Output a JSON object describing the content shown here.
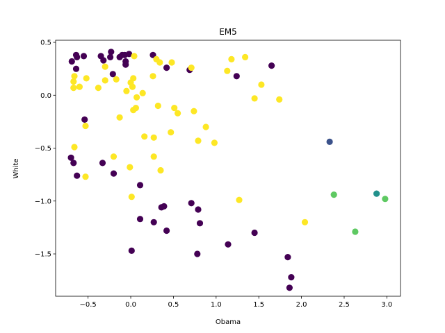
{
  "chart_data": {
    "type": "scatter",
    "title": "EM5",
    "xlabel": "Obama",
    "ylabel": "White",
    "xlim": [
      -0.88,
      3.16
    ],
    "ylim": [
      -1.9,
      0.52
    ],
    "xticks": [
      -0.5,
      0.0,
      0.5,
      1.0,
      1.5,
      2.0,
      2.5,
      3.0
    ],
    "xtick_labels": [
      "−0.5",
      "0.0",
      "0.5",
      "1.0",
      "1.5",
      "2.0",
      "2.5",
      "3.0"
    ],
    "yticks": [
      0.5,
      0.0,
      -0.5,
      -1.0,
      -1.5
    ],
    "ytick_labels": [
      "0.5",
      "0.0",
      "−0.5",
      "−1.0",
      "−1.5"
    ],
    "grid": false,
    "legend": false,
    "colormap": {
      "0": "#440154",
      "1": "#3b528b",
      "2": "#21918c",
      "3": "#5ec962",
      "4": "#fde725"
    },
    "points": [
      {
        "x": -0.69,
        "y": 0.32,
        "c": 0
      },
      {
        "x": -0.64,
        "y": 0.38,
        "c": 0
      },
      {
        "x": -0.63,
        "y": 0.36,
        "c": 0
      },
      {
        "x": -0.64,
        "y": 0.25,
        "c": 0
      },
      {
        "x": -0.55,
        "y": 0.37,
        "c": 0
      },
      {
        "x": -0.35,
        "y": 0.37,
        "c": 0
      },
      {
        "x": -0.32,
        "y": 0.33,
        "c": 0
      },
      {
        "x": -0.23,
        "y": 0.41,
        "c": 0
      },
      {
        "x": -0.24,
        "y": 0.36,
        "c": 0
      },
      {
        "x": -0.13,
        "y": 0.36,
        "c": 0
      },
      {
        "x": -0.1,
        "y": 0.38,
        "c": 0
      },
      {
        "x": -0.07,
        "y": 0.38,
        "c": 0
      },
      {
        "x": -0.06,
        "y": 0.32,
        "c": 0
      },
      {
        "x": -0.06,
        "y": 0.29,
        "c": 0
      },
      {
        "x": -0.02,
        "y": 0.39,
        "c": 0
      },
      {
        "x": 0.26,
        "y": 0.38,
        "c": 0
      },
      {
        "x": 0.42,
        "y": 0.26,
        "c": 0
      },
      {
        "x": -0.21,
        "y": 0.2,
        "c": 0
      },
      {
        "x": 0.69,
        "y": 0.24,
        "c": 0
      },
      {
        "x": 1.24,
        "y": 0.18,
        "c": 0
      },
      {
        "x": 1.65,
        "y": 0.28,
        "c": 0
      },
      {
        "x": -0.54,
        "y": -0.23,
        "c": 0
      },
      {
        "x": -0.7,
        "y": -0.59,
        "c": 0
      },
      {
        "x": -0.67,
        "y": -0.64,
        "c": 0
      },
      {
        "x": -0.63,
        "y": -0.76,
        "c": 0
      },
      {
        "x": -0.33,
        "y": -0.64,
        "c": 0
      },
      {
        "x": -0.2,
        "y": -0.74,
        "c": 0
      },
      {
        "x": 0.11,
        "y": -0.85,
        "c": 0
      },
      {
        "x": 0.71,
        "y": -1.02,
        "c": 0
      },
      {
        "x": 0.36,
        "y": -1.06,
        "c": 0
      },
      {
        "x": 0.39,
        "y": -1.05,
        "c": 0
      },
      {
        "x": 0.79,
        "y": -1.08,
        "c": 0
      },
      {
        "x": 0.11,
        "y": -1.17,
        "c": 0
      },
      {
        "x": 0.27,
        "y": -1.2,
        "c": 0
      },
      {
        "x": 0.81,
        "y": -1.21,
        "c": 0
      },
      {
        "x": 0.42,
        "y": -1.28,
        "c": 0
      },
      {
        "x": 1.45,
        "y": -1.3,
        "c": 0
      },
      {
        "x": 1.14,
        "y": -1.41,
        "c": 0
      },
      {
        "x": 0.01,
        "y": -1.47,
        "c": 0
      },
      {
        "x": 0.78,
        "y": -1.5,
        "c": 0
      },
      {
        "x": 1.84,
        "y": -1.53,
        "c": 0
      },
      {
        "x": 1.88,
        "y": -1.72,
        "c": 0
      },
      {
        "x": 1.86,
        "y": -1.82,
        "c": 0
      },
      {
        "x": 2.33,
        "y": -0.44,
        "c": 1
      },
      {
        "x": 2.88,
        "y": -0.93,
        "c": 2
      },
      {
        "x": 2.38,
        "y": -0.94,
        "c": 3
      },
      {
        "x": 2.98,
        "y": -0.98,
        "c": 3
      },
      {
        "x": 2.63,
        "y": -1.29,
        "c": 3
      },
      {
        "x": -0.66,
        "y": 0.18,
        "c": 4
      },
      {
        "x": -0.67,
        "y": 0.13,
        "c": 4
      },
      {
        "x": -0.67,
        "y": 0.07,
        "c": 4
      },
      {
        "x": -0.6,
        "y": 0.08,
        "c": 4
      },
      {
        "x": -0.52,
        "y": 0.16,
        "c": 4
      },
      {
        "x": -0.3,
        "y": 0.27,
        "c": 4
      },
      {
        "x": -0.3,
        "y": 0.14,
        "c": 4
      },
      {
        "x": -0.38,
        "y": 0.07,
        "c": 4
      },
      {
        "x": -0.17,
        "y": 0.15,
        "c": 4
      },
      {
        "x": -0.05,
        "y": 0.04,
        "c": 4
      },
      {
        "x": 0.0,
        "y": 0.12,
        "c": 4
      },
      {
        "x": 0.03,
        "y": 0.16,
        "c": 4
      },
      {
        "x": 0.02,
        "y": 0.08,
        "c": 4
      },
      {
        "x": 0.04,
        "y": 0.37,
        "c": 4
      },
      {
        "x": 0.14,
        "y": 0.02,
        "c": 4
      },
      {
        "x": 0.07,
        "y": -0.02,
        "c": 4
      },
      {
        "x": 0.03,
        "y": -0.14,
        "c": 4
      },
      {
        "x": 0.06,
        "y": -0.12,
        "c": 4
      },
      {
        "x": -0.13,
        "y": -0.21,
        "c": 4
      },
      {
        "x": -0.53,
        "y": -0.29,
        "c": 4
      },
      {
        "x": 0.3,
        "y": 0.34,
        "c": 4
      },
      {
        "x": 0.34,
        "y": 0.31,
        "c": 4
      },
      {
        "x": 0.48,
        "y": 0.31,
        "c": 4
      },
      {
        "x": 0.26,
        "y": 0.18,
        "c": 4
      },
      {
        "x": 0.32,
        "y": -0.1,
        "c": 4
      },
      {
        "x": 0.51,
        "y": -0.12,
        "c": 4
      },
      {
        "x": 0.55,
        "y": -0.17,
        "c": 4
      },
      {
        "x": 0.74,
        "y": -0.15,
        "c": 4
      },
      {
        "x": 0.71,
        "y": 0.26,
        "c": 4
      },
      {
        "x": 1.13,
        "y": 0.23,
        "c": 4
      },
      {
        "x": 1.18,
        "y": 0.34,
        "c": 4
      },
      {
        "x": 1.34,
        "y": 0.36,
        "c": 4
      },
      {
        "x": 1.53,
        "y": 0.1,
        "c": 4
      },
      {
        "x": 1.45,
        "y": -0.03,
        "c": 4
      },
      {
        "x": 1.74,
        "y": -0.04,
        "c": 4
      },
      {
        "x": 0.88,
        "y": -0.3,
        "c": 4
      },
      {
        "x": 0.47,
        "y": -0.35,
        "c": 4
      },
      {
        "x": 0.16,
        "y": -0.39,
        "c": 4
      },
      {
        "x": 0.27,
        "y": -0.4,
        "c": 4
      },
      {
        "x": 0.79,
        "y": -0.43,
        "c": 4
      },
      {
        "x": 0.98,
        "y": -0.45,
        "c": 4
      },
      {
        "x": -0.66,
        "y": -0.49,
        "c": 4
      },
      {
        "x": -0.2,
        "y": -0.58,
        "c": 4
      },
      {
        "x": 0.27,
        "y": -0.58,
        "c": 4
      },
      {
        "x": -0.01,
        "y": -0.68,
        "c": 4
      },
      {
        "x": 0.35,
        "y": -0.71,
        "c": 4
      },
      {
        "x": -0.53,
        "y": -0.77,
        "c": 4
      },
      {
        "x": 0.01,
        "y": -0.96,
        "c": 4
      },
      {
        "x": 1.27,
        "y": -0.99,
        "c": 4
      },
      {
        "x": 2.04,
        "y": -1.2,
        "c": 4
      }
    ]
  }
}
